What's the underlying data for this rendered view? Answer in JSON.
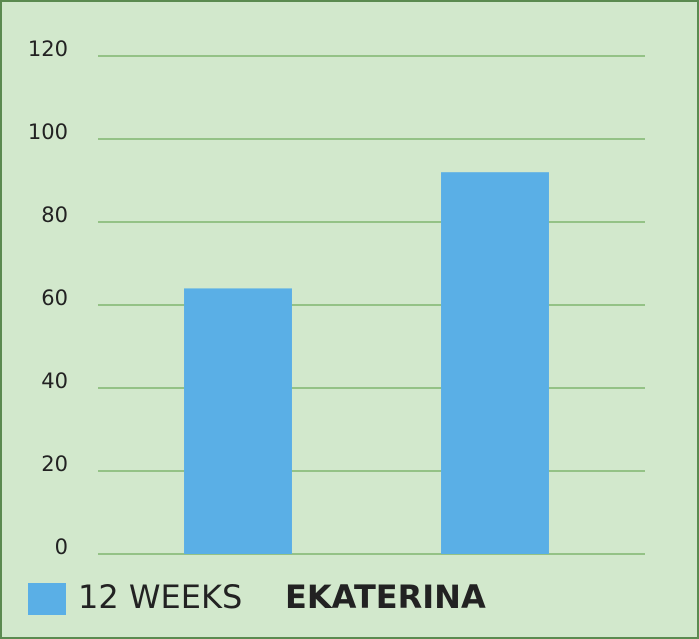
{
  "chart_data": {
    "type": "bar",
    "categories": [
      null,
      null
    ],
    "series": [
      {
        "name": "12 WEEKS",
        "color": "#5aafe6",
        "values": [
          64,
          92
        ]
      }
    ],
    "annotation": "EKATERINA",
    "ylim": [
      0,
      120
    ],
    "yticks": [
      0,
      20,
      40,
      60,
      80,
      100,
      120
    ],
    "grid": true
  }
}
